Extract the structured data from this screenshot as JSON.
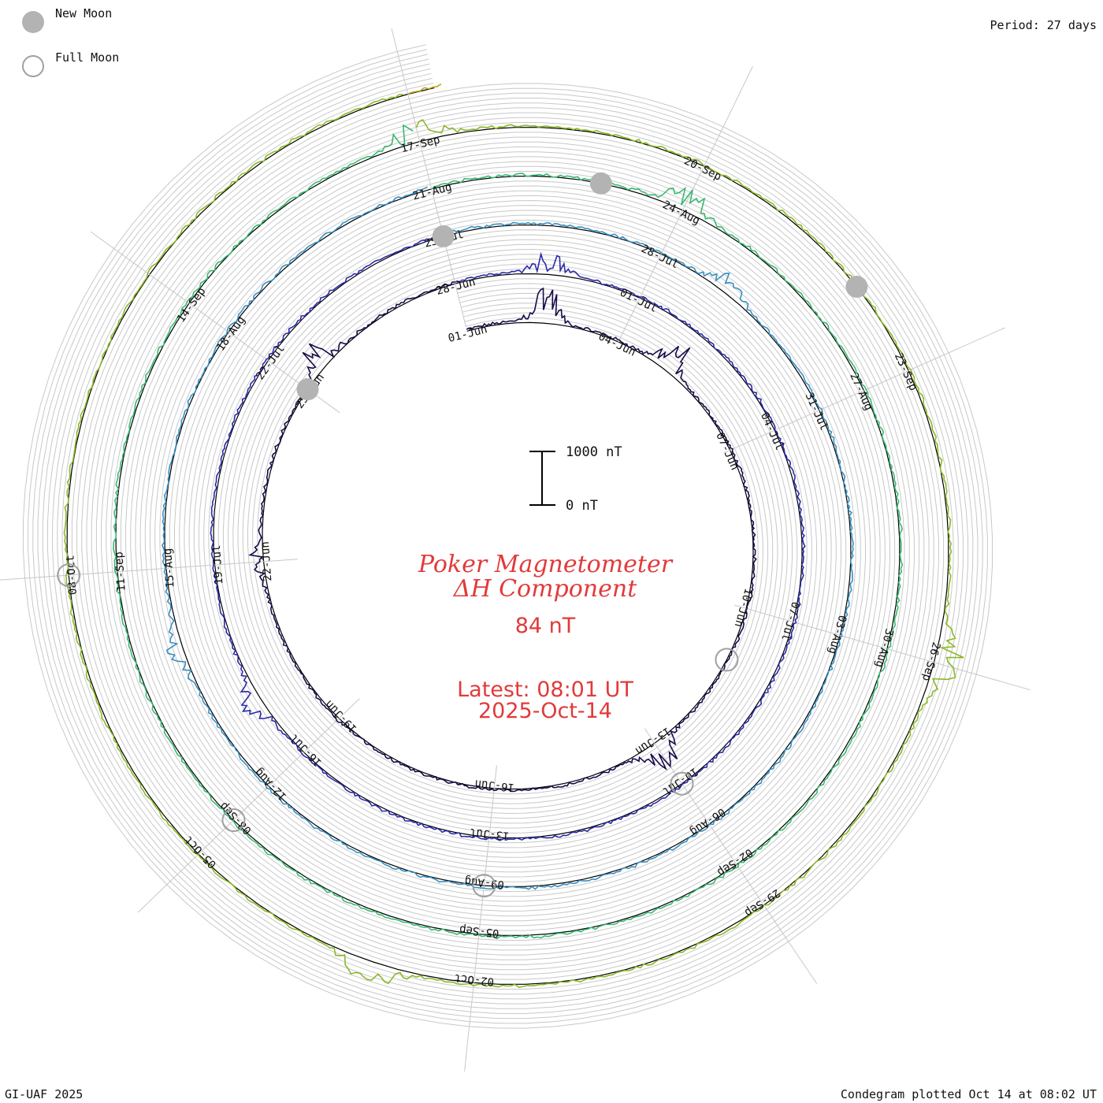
{
  "legend": {
    "new_moon_label": "New Moon",
    "full_moon_label": "Full Moon"
  },
  "period_label": "Period: 27 days",
  "credit": "GI-UAF 2025",
  "plotted_note": "Condegram plotted Oct 14 at 08:02 UT",
  "chart_data": {
    "type": "line",
    "subtype": "condegram-spiral",
    "title_line1": "Poker Magnetometer",
    "title_line2": "ΔH Component",
    "current_value": "84 nT",
    "latest_line1": "Latest: 08:01 UT",
    "latest_line2": "2025-Oct-14",
    "scale_top_label": "1000 nT",
    "scale_bottom_label": "0 nT",
    "scale_range_nT": [
      0,
      1000
    ],
    "period_days": 27,
    "start_date": "2025-06-01",
    "end_date": "2025-10-14",
    "date_labels": [
      "01-Jun",
      "04-Jun",
      "07-Jun",
      "10-Jun",
      "13-Jun",
      "16-Jun",
      "19-Jun",
      "22-Jun",
      "25-Jun",
      "28-Jun",
      "01-Jul",
      "04-Jul",
      "07-Jul",
      "10-Jul",
      "13-Jul",
      "16-Jul",
      "19-Jul",
      "22-Jul",
      "25-Jul",
      "28-Jul",
      "31-Jul",
      "03-Aug",
      "06-Aug",
      "09-Aug",
      "12-Aug",
      "15-Aug",
      "18-Aug",
      "21-Aug",
      "24-Aug",
      "27-Aug",
      "30-Aug",
      "02-Sep",
      "05-Sep",
      "08-Sep",
      "11-Sep",
      "14-Sep",
      "17-Sep",
      "20-Sep",
      "23-Sep",
      "26-Sep",
      "29-Sep",
      "02-Oct",
      "05-Oct",
      "08-Oct"
    ],
    "new_moon_days": [
      24,
      54,
      83,
      113
    ],
    "full_moon_days": [
      10,
      39,
      69,
      99,
      129
    ],
    "cycle_colors": [
      "#1a0a4a",
      "#2a2aa8",
      "#3a8fc0",
      "#3ab870",
      "#8ab828",
      "#b8a818",
      "#c86a10",
      "#b81a0a"
    ],
    "activity_peaks_nT": [
      {
        "day": 1.5,
        "value": 620
      },
      {
        "day": 4,
        "value": 450
      },
      {
        "day": 12,
        "value": 380
      },
      {
        "day": 21,
        "value": 200
      },
      {
        "day": 24.5,
        "value": 350
      },
      {
        "day": 28.5,
        "value": 300
      },
      {
        "day": 46,
        "value": 260
      },
      {
        "day": 58,
        "value": 240
      },
      {
        "day": 74,
        "value": 280
      },
      {
        "day": 84,
        "value": 330
      },
      {
        "day": 108,
        "value": 300
      },
      {
        "day": 117,
        "value": 420
      },
      {
        "day": 124,
        "value": 360
      }
    ]
  }
}
